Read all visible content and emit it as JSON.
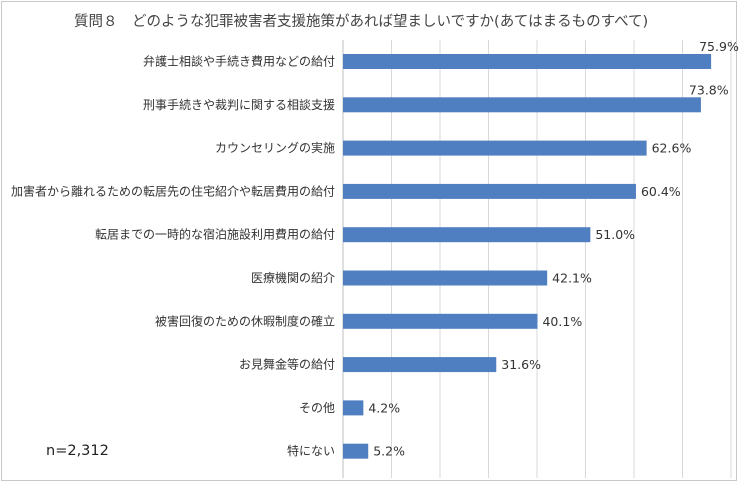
{
  "chart_data": {
    "type": "bar",
    "orientation": "horizontal",
    "title": "質問８　どのような犯罪被害者支援施策があれば望ましいですか(あてはまるものすべて)",
    "note": "n=2,312",
    "categories": [
      "弁護士相談や手続き費用などの給付",
      "刑事手続きや裁判に関する相談支援",
      "カウンセリングの実施",
      "加害者から離れるための転居先の住宅紹介や転居費用の給付",
      "転居までの一時的な宿泊施設利用費用の給付",
      "医療機関の紹介",
      "被害回復のための休暇制度の確立",
      "お見舞金等の給付",
      "その他",
      "特にない"
    ],
    "values": [
      75.9,
      73.8,
      62.6,
      60.4,
      51.0,
      42.1,
      40.1,
      31.6,
      4.2,
      5.2
    ],
    "value_labels": [
      "75.9%",
      "73.8%",
      "62.6%",
      "60.4%",
      "51.0%",
      "42.1%",
      "40.1%",
      "31.6%",
      "4.2%",
      "5.2%"
    ],
    "xlim": [
      0,
      80
    ],
    "grid": "vertical",
    "bar_color": "#4f7fc0",
    "grid_color": "#d9d9d9"
  }
}
